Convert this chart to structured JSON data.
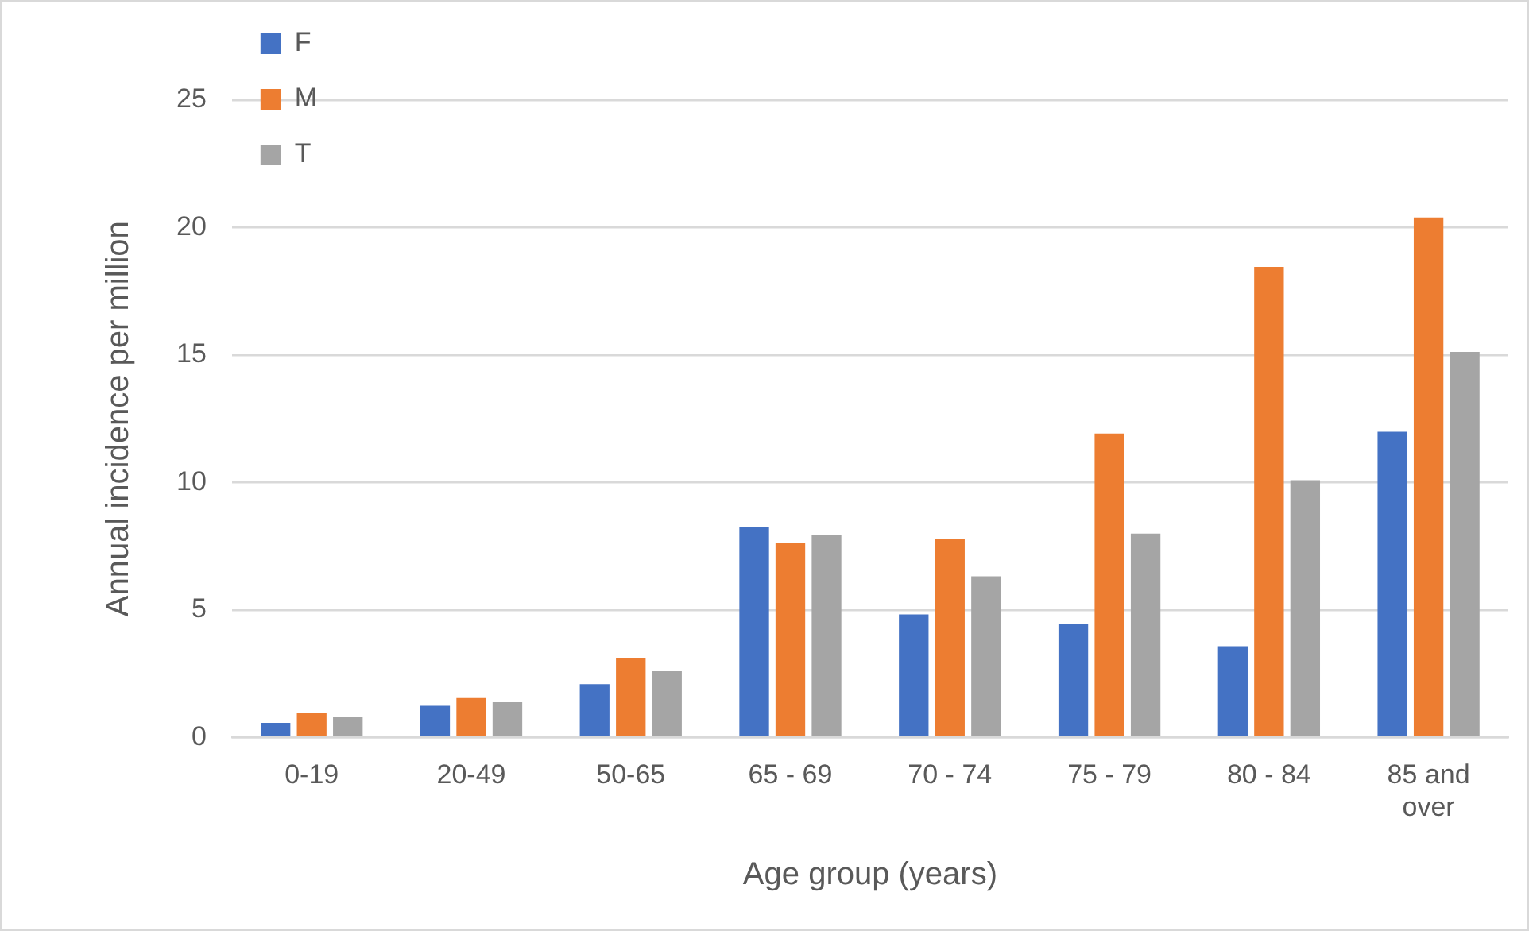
{
  "chart_data": {
    "type": "bar",
    "xlabel": "Age group (years)",
    "ylabel": "Annual incidence per million",
    "categories": [
      "0-19",
      "20-49",
      "50-65",
      "65 - 69",
      "70 - 74",
      "75 - 79",
      "80 - 84",
      "85 and over"
    ],
    "series": [
      {
        "name": "F",
        "color": "#4472c4",
        "values": [
          0.57,
          1.24,
          2.09,
          8.24,
          4.83,
          4.47,
          3.58,
          11.99
        ]
      },
      {
        "name": "M",
        "color": "#ed7d31",
        "values": [
          0.98,
          1.55,
          3.13,
          7.64,
          7.79,
          11.92,
          18.46,
          20.4
        ]
      },
      {
        "name": "T",
        "color": "#a5a5a5",
        "values": [
          0.79,
          1.38,
          2.6,
          7.94,
          6.32,
          8.0,
          10.09,
          15.12
        ]
      }
    ],
    "ylim": [
      0,
      25
    ],
    "yticks": [
      0,
      5,
      10,
      15,
      20,
      25
    ],
    "grid": "y",
    "legend": "top left"
  }
}
